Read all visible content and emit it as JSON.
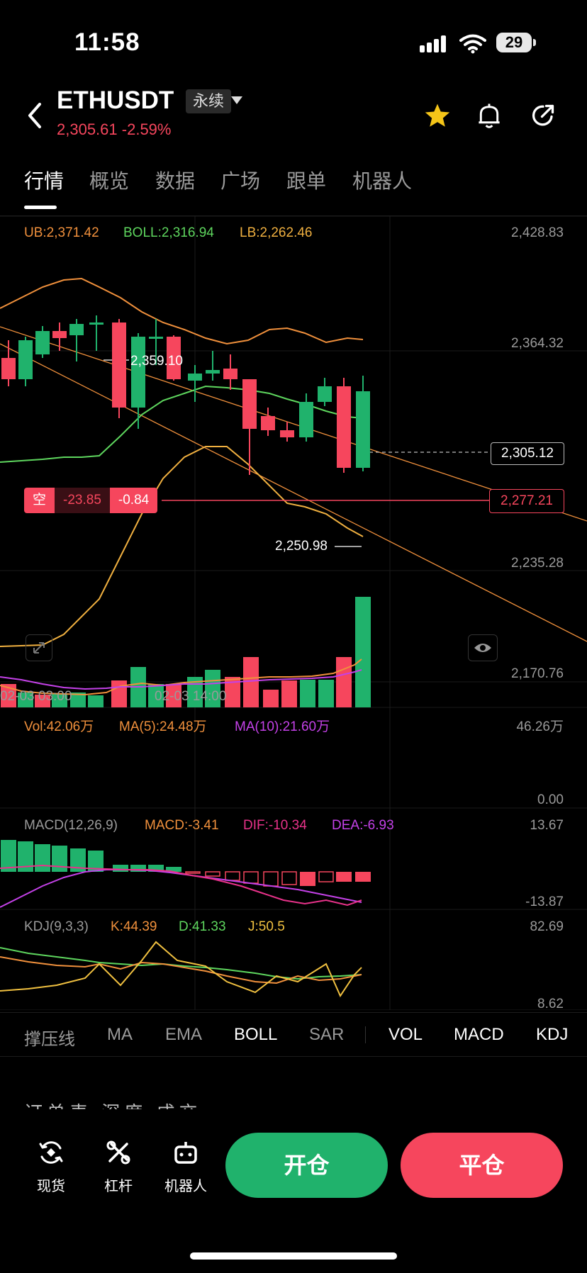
{
  "status": {
    "time": "11:58",
    "battery": "29"
  },
  "header": {
    "symbol": "ETHUSDT",
    "badge": "永续",
    "price": "2,305.61",
    "change": "-2.59%"
  },
  "tabs": [
    "行情",
    "概览",
    "数据",
    "广场",
    "跟单",
    "机器人"
  ],
  "main_chart": {
    "ub": "UB:2,371.42",
    "boll": "BOLL:2,316.94",
    "lb": "LB:2,262.46",
    "y_ticks": [
      "2,428.83",
      "2,364.32",
      "2,235.28",
      "2,170.76"
    ],
    "current_price": "2,305.12",
    "position_side": "空",
    "position_pnl": "-23.85",
    "position_pct": "-0.84",
    "position_price": "2,277.21",
    "high_label": "2,359.10",
    "low_label": "2,250.98",
    "x_ticks": [
      "02-03 03:00",
      "02-03 14:00"
    ],
    "colors": {
      "up": "#20b26c",
      "down": "#f6465d",
      "ub": "#f0903c",
      "mid": "#5ed65e",
      "lb": "#f0b040"
    }
  },
  "volume": {
    "vol": "Vol:42.06万",
    "ma5": "MA(5):24.48万",
    "ma10": "MA(10):21.60万",
    "top": "46.26万",
    "bottom": "0.00"
  },
  "macd": {
    "title": "MACD(12,26,9)",
    "macd": "MACD:-3.41",
    "dif": "DIF:-10.34",
    "dea": "DEA:-6.93",
    "top": "13.67",
    "bottom": "-13.87"
  },
  "kdj": {
    "title": "KDJ(9,3,3)",
    "k": "K:44.39",
    "d": "D:41.33",
    "j": "J:50.5",
    "top": "82.69",
    "bottom": "8.62"
  },
  "indicators": [
    "撑压线",
    "MA",
    "EMA",
    "BOLL",
    "SAR",
    "VOL",
    "MACD",
    "KDJ"
  ],
  "order_tabs_peek": "订单表 深度 成交",
  "bottom_nav": [
    {
      "label": "现货"
    },
    {
      "label": "杠杆"
    },
    {
      "label": "机器人"
    }
  ],
  "actions": {
    "open": "开仓",
    "close": "平仓"
  }
}
